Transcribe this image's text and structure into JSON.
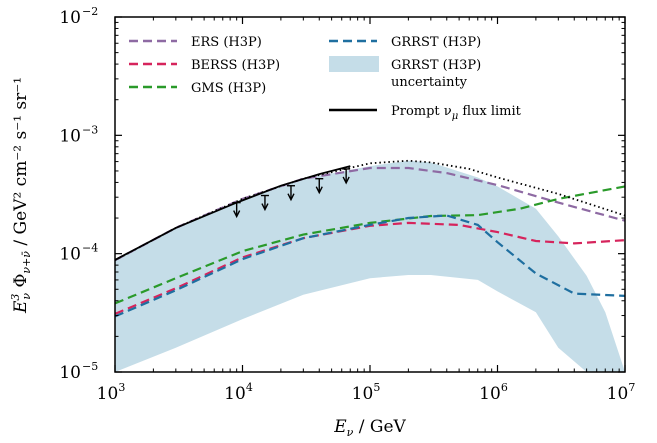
{
  "chart_data": {
    "type": "line",
    "x_scale": "log",
    "y_scale": "log",
    "xlim": [
      1000,
      10000000
    ],
    "ylim": [
      1e-05,
      0.01
    ],
    "grid": false,
    "legend_location": "upper",
    "xlabel": {
      "base": "E",
      "sub": "ν",
      "unit": " / GeV"
    },
    "ylabel": {
      "base": "E",
      "sup": "3",
      "sub": "ν",
      "phi_sub": "ν+ν̄",
      "unit": " / GeV² cm⁻² s⁻¹ sr⁻¹"
    },
    "x_ticks": [
      {
        "value": 1000,
        "base": "10",
        "exp": "3"
      },
      {
        "value": 10000,
        "base": "10",
        "exp": "4"
      },
      {
        "value": 100000,
        "base": "10",
        "exp": "5"
      },
      {
        "value": 1000000,
        "base": "10",
        "exp": "6"
      },
      {
        "value": 10000000,
        "base": "10",
        "exp": "7"
      }
    ],
    "y_ticks": [
      {
        "value": 1e-05,
        "base": "10",
        "exp": "−5"
      },
      {
        "value": 0.0001,
        "base": "10",
        "exp": "−4"
      },
      {
        "value": 0.001,
        "base": "10",
        "exp": "−3"
      },
      {
        "value": 0.01,
        "base": "10",
        "exp": "−2"
      }
    ],
    "series": [
      {
        "name": "ERS (H3P)",
        "style": "dashed",
        "color": "#8e6aa3",
        "x": [
          1000,
          3000,
          10000,
          30000,
          100000,
          200000,
          400000,
          1000000,
          3000000,
          10000000
        ],
        "y": [
          8.8e-05,
          0.000165,
          0.00029,
          0.00043,
          0.00053,
          0.00053,
          0.00048,
          0.00038,
          0.00027,
          0.00019
        ]
      },
      {
        "name": "BERSS (H3P)",
        "style": "dashed",
        "color": "#d6245c",
        "x": [
          1000,
          3000,
          10000,
          30000,
          100000,
          200000,
          500000,
          1000000,
          2000000,
          4000000,
          10000000
        ],
        "y": [
          3.1e-05,
          5.1e-05,
          9.3e-05,
          0.000135,
          0.000172,
          0.000182,
          0.000175,
          0.000152,
          0.000128,
          0.000122,
          0.00013
        ]
      },
      {
        "name": "GMS (H3P)",
        "style": "dashed",
        "color": "#2a9a2a",
        "x": [
          1000,
          3000,
          10000,
          30000,
          100000,
          300000,
          700000,
          1500000,
          3000000,
          10000000
        ],
        "y": [
          3.8e-05,
          6.2e-05,
          0.000105,
          0.000145,
          0.000182,
          0.000208,
          0.000212,
          0.00024,
          0.00029,
          0.00037
        ]
      },
      {
        "name": "GRRST (H3P)",
        "style": "dashed",
        "color": "#1f6fa0",
        "x": [
          1000,
          3000,
          10000,
          30000,
          100000,
          200000,
          400000,
          700000,
          1000000,
          2000000,
          4000000,
          10000000
        ],
        "y": [
          2.95e-05,
          4.9e-05,
          9e-05,
          0.000135,
          0.000175,
          0.0002,
          0.00021,
          0.000175,
          0.000125,
          6.8e-05,
          4.6e-05,
          4.4e-05
        ]
      },
      {
        "name": "GRRST (H3P) uncertainty",
        "style": "band",
        "color": "#c5dde8",
        "x": [
          1000,
          3000,
          10000,
          30000,
          100000,
          200000,
          300000,
          700000,
          1000000,
          2000000,
          3000000,
          5000000,
          7000000,
          10000000
        ],
        "upper": [
          8.8e-05,
          0.000165,
          0.00029,
          0.00043,
          0.00055,
          0.00061,
          0.00059,
          0.00044,
          0.00037,
          0.00024,
          0.00014,
          6.5e-05,
          3.2e-05,
          1e-05
        ],
        "lower": [
          1e-05,
          1.6e-05,
          2.8e-05,
          4.5e-05,
          6.2e-05,
          6.6e-05,
          6.6e-05,
          6e-05,
          4.8e-05,
          3.2e-05,
          1.6e-05,
          1e-05,
          1e-05,
          1e-05
        ]
      },
      {
        "name": "Prompt ν_μ flux limit",
        "style": "solid",
        "color": "#000000",
        "x": [
          1000,
          3000,
          9000,
          20000,
          40000,
          70000
        ],
        "y": [
          8.85e-05,
          0.000165,
          0.00027,
          0.000375,
          0.00047,
          0.00055
        ]
      },
      {
        "name": "",
        "style": "dotted",
        "color": "#000000",
        "x": [
          1000,
          3000,
          10000,
          30000,
          100000,
          200000,
          300000,
          600000,
          1000000,
          3000000,
          10000000
        ],
        "y": [
          8.8e-05,
          0.000165,
          0.00029,
          0.00043,
          0.00058,
          0.00061,
          0.00059,
          0.00052,
          0.00044,
          0.00032,
          0.00021
        ]
      }
    ],
    "upper_limit_arrows": {
      "x": [
        9000,
        15000,
        24000,
        40000,
        65000
      ],
      "y": [
        0.00027,
        0.00031,
        0.000375,
        0.00043,
        0.00052
      ]
    },
    "legend": [
      {
        "label": "ERS (H3P)",
        "color": "#8e6aa3",
        "style": "dashed"
      },
      {
        "label": "GRRST (H3P)",
        "color": "#1f6fa0",
        "style": "dashed"
      },
      {
        "label": "BERSS (H3P)",
        "color": "#d6245c",
        "style": "dashed"
      },
      {
        "label": "GRRST (H3P)",
        "label2": "uncertainty",
        "color": "#c5dde8",
        "style": "band"
      },
      {
        "label": "GMS (H3P)",
        "color": "#2a9a2a",
        "style": "dashed"
      },
      {
        "label": "Prompt ν",
        "label_sub": "μ",
        "label_rest": " flux limit",
        "color": "#000000",
        "style": "solid"
      }
    ]
  }
}
